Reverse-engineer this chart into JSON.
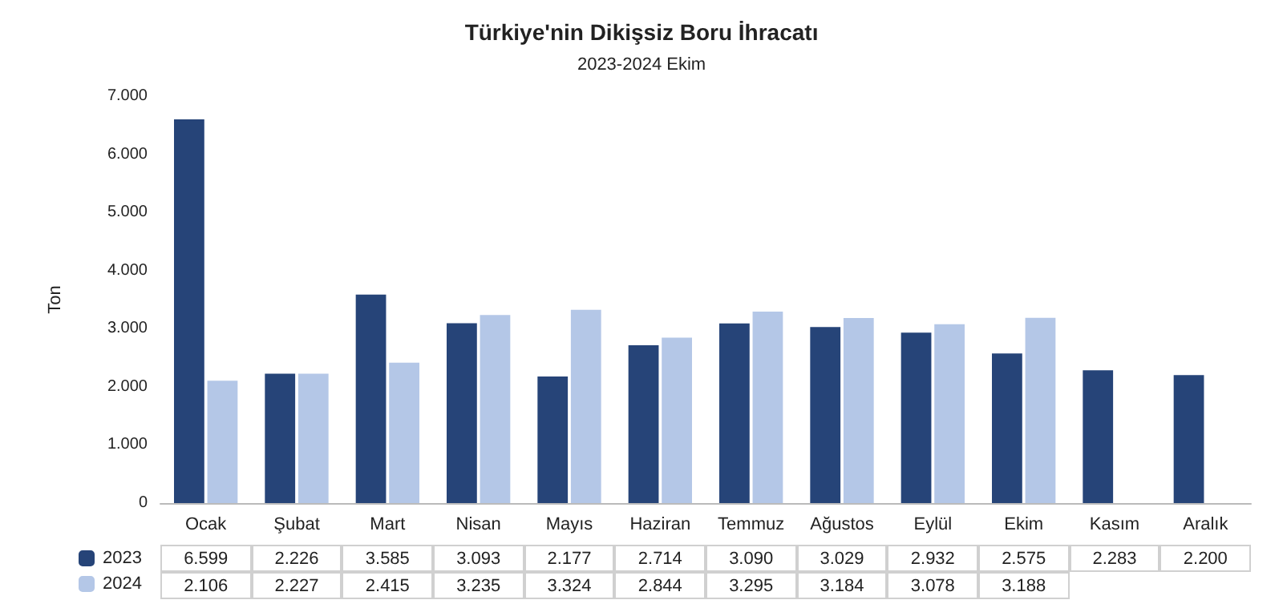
{
  "chart_data": {
    "type": "bar",
    "title": "Türkiye'nin Dikişsiz Boru İhracatı",
    "subtitle": "2023-2024 Ekim",
    "ylabel": "Ton",
    "categories": [
      "Ocak",
      "Şubat",
      "Mart",
      "Nisan",
      "Mayıs",
      "Haziran",
      "Temmuz",
      "Ağustos",
      "Eylül",
      "Ekim",
      "Kasım",
      "Aralık"
    ],
    "series": [
      {
        "name": "2023",
        "color": "#264478",
        "values": [
          6599,
          2226,
          3585,
          3093,
          2177,
          2714,
          3090,
          3029,
          2932,
          2575,
          2283,
          2200
        ],
        "value_labels": [
          "6.599",
          "2.226",
          "3.585",
          "3.093",
          "2.177",
          "2.714",
          "3.090",
          "3.029",
          "2.932",
          "2.575",
          "2.283",
          "2.200"
        ]
      },
      {
        "name": "2024",
        "color": "#b4c7e7",
        "values": [
          2106,
          2227,
          2415,
          3235,
          3324,
          2844,
          3295,
          3184,
          3078,
          3188,
          null,
          null
        ],
        "value_labels": [
          "2.106",
          "2.227",
          "2.415",
          "3.235",
          "3.324",
          "2.844",
          "3.295",
          "3.184",
          "3.078",
          "3.188",
          null,
          null
        ]
      }
    ],
    "ylim": [
      0,
      7000
    ],
    "yticks": [
      {
        "value": 0,
        "label": "0"
      },
      {
        "value": 1000,
        "label": "1.000"
      },
      {
        "value": 2000,
        "label": "2.000"
      },
      {
        "value": 3000,
        "label": "3.000"
      },
      {
        "value": 4000,
        "label": "4.000"
      },
      {
        "value": 5000,
        "label": "5.000"
      },
      {
        "value": 6000,
        "label": "6.000"
      },
      {
        "value": 7000,
        "label": "7.000"
      }
    ],
    "legend": "bottom"
  }
}
